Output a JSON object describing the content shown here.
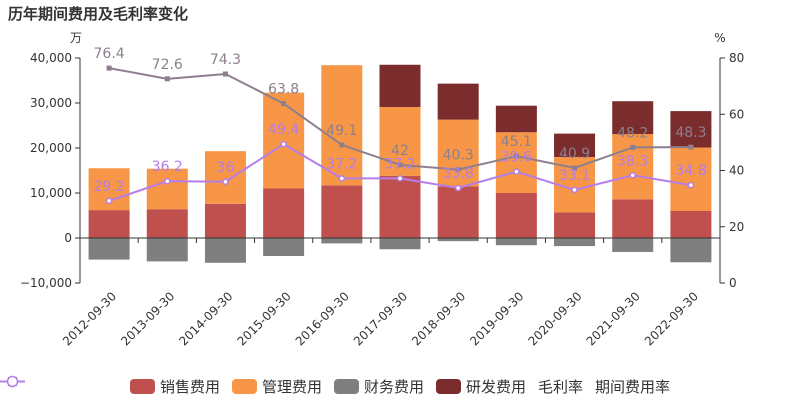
{
  "title": "历年期间费用及毛利率变化",
  "chart_data": {
    "type": "bar",
    "title": "历年期间费用及毛利率变化",
    "categories": [
      "2012-09-30",
      "2013-09-30",
      "2014-09-30",
      "2015-09-30",
      "2016-09-30",
      "2017-09-30",
      "2018-09-30",
      "2019-09-30",
      "2020-09-30",
      "2021-09-30",
      "2022-09-30"
    ],
    "left_axis": {
      "unit": "万",
      "ylim": [
        -10000,
        40000
      ],
      "ticks": [
        -10000,
        0,
        10000,
        20000,
        30000,
        40000
      ],
      "tick_labels": [
        "−10,000",
        "0",
        "10,000",
        "20,000",
        "30,000",
        "40,000"
      ]
    },
    "right_axis": {
      "unit": "%",
      "ylim": [
        0,
        80
      ],
      "ticks": [
        0,
        20,
        40,
        60,
        80
      ],
      "tick_labels": [
        "0",
        "20",
        "40",
        "60",
        "80"
      ]
    },
    "stack_series": [
      {
        "name": "销售费用",
        "color": "#c0504d",
        "values": [
          6200,
          6400,
          7600,
          11000,
          11700,
          13800,
          11500,
          10000,
          5700,
          8600,
          6000
        ]
      },
      {
        "name": "管理费用",
        "color": "#f79646",
        "values": [
          9300,
          9000,
          11700,
          21300,
          26700,
          15300,
          14800,
          13500,
          12300,
          14500,
          14100
        ]
      },
      {
        "name": "财务费用",
        "color": "#7f7f7f",
        "values": [
          -4800,
          -5200,
          -5500,
          -4000,
          -1200,
          -2500,
          -700,
          -1600,
          -1800,
          -3100,
          -5400
        ]
      },
      {
        "name": "研发费用",
        "color": "#7b2c2c",
        "values": [
          0,
          0,
          0,
          0,
          0,
          9400,
          8000,
          5900,
          5200,
          7300,
          8100
        ]
      }
    ],
    "line_series": [
      {
        "name": "毛利率",
        "color": "#8d7f8e",
        "values": [
          76.4,
          72.6,
          74.3,
          63.8,
          49.1,
          42,
          40.3,
          45.1,
          40.9,
          48.2,
          48.3
        ],
        "labels": [
          "76.4",
          "72.6",
          "74.3",
          "63.8",
          "49.1",
          "42",
          "40.3",
          "45.1",
          "40.9",
          "48.2",
          "48.3"
        ]
      },
      {
        "name": "期间费用率",
        "color": "#b57ee8",
        "values": [
          29.2,
          36.2,
          36,
          49.4,
          37.2,
          37.2,
          33.8,
          39.6,
          33.1,
          38.3,
          34.8
        ],
        "labels": [
          "29.2",
          "36.2",
          "36",
          "49.4",
          "37.2",
          "37.2",
          "33.8",
          "39.6",
          "33.1",
          "38.3",
          "34.8"
        ]
      }
    ],
    "grid": false,
    "legend_position": "bottom"
  }
}
